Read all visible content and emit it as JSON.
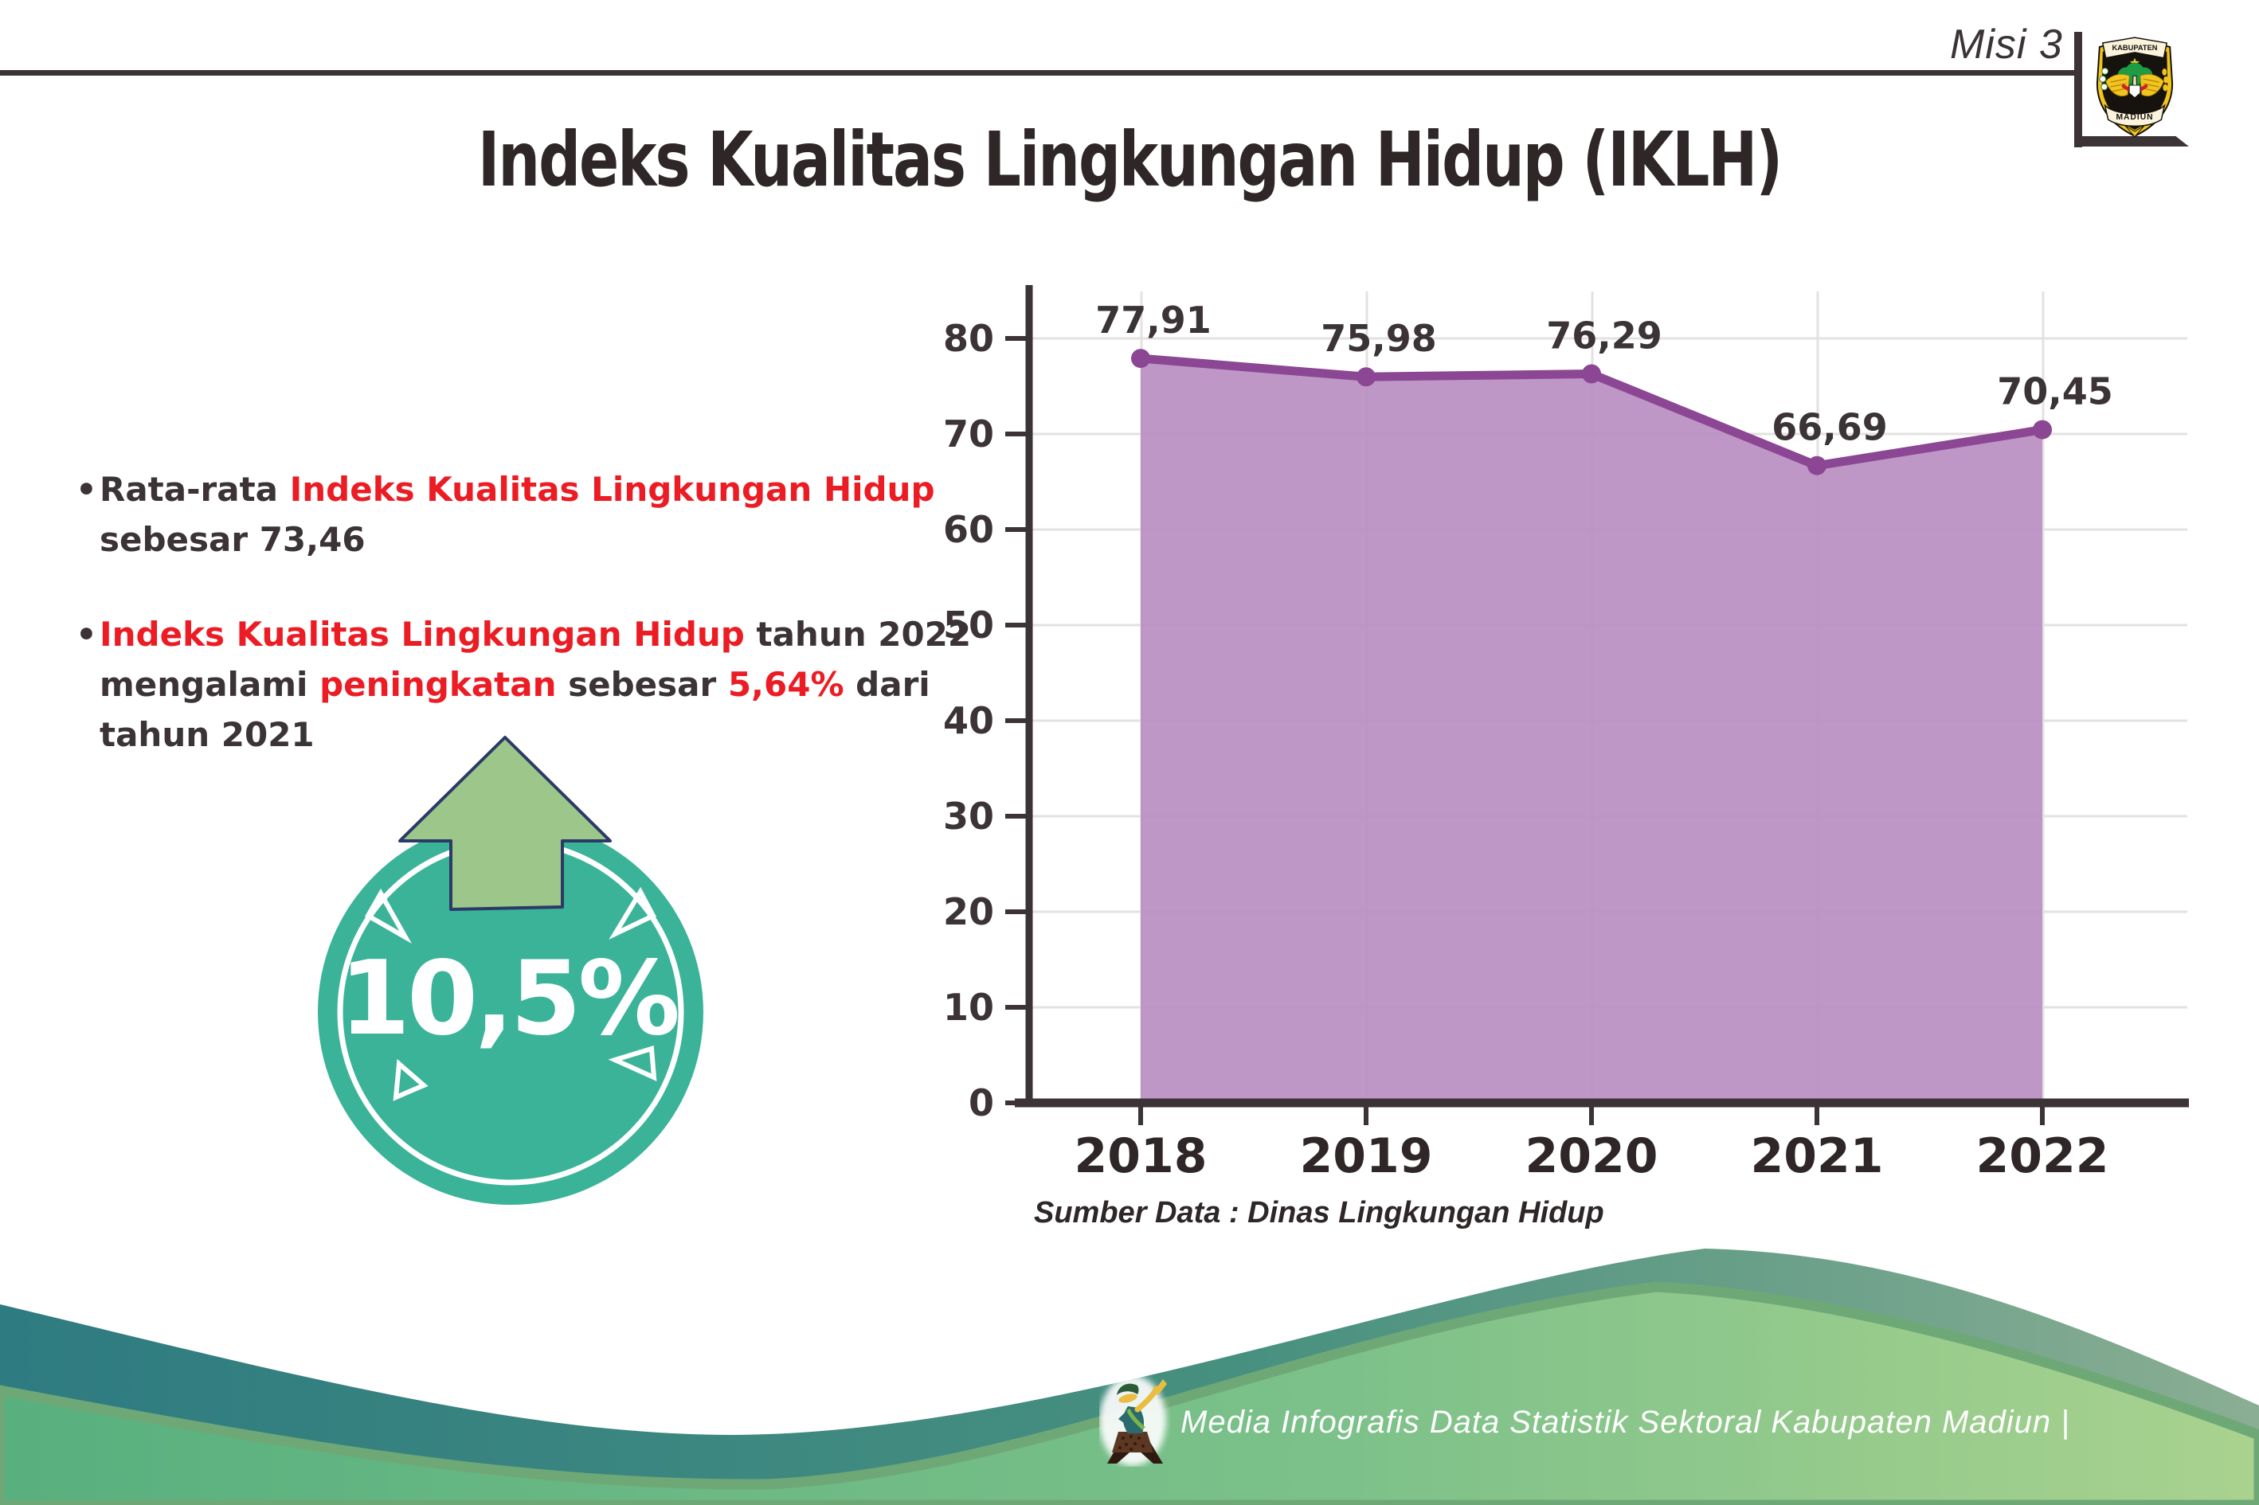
{
  "header": {
    "misi": "Misi 3"
  },
  "logo": {
    "top_text": "KABUPATEN",
    "bottom_text": "MADIUN"
  },
  "title": "Indeks Kualitas Lingkungan Hidup (IKLH)",
  "bullet_marker": "•",
  "bullets": [
    {
      "lines": [
        [
          {
            "t": "Rata-rata ",
            "c": "ink"
          },
          {
            "t": "Indeks Kualitas Lingkungan Hidup",
            "c": "red"
          }
        ],
        [
          {
            "t": "sebesar 73,46",
            "c": "ink"
          }
        ]
      ]
    },
    {
      "lines": [
        [
          {
            "t": "Indeks Kualitas Lingkungan Hidup",
            "c": "red"
          },
          {
            "t": " tahun 2022",
            "c": "ink"
          }
        ],
        [
          {
            "t": "mengalami ",
            "c": "ink"
          },
          {
            "t": "peningkatan",
            "c": "red"
          },
          {
            "t": " sebesar ",
            "c": "ink"
          },
          {
            "t": "5,64%",
            "c": "red"
          },
          {
            "t": " dari",
            "c": "ink"
          }
        ],
        [
          {
            "t": "tahun 2021",
            "c": "ink"
          }
        ]
      ]
    }
  ],
  "badge": {
    "value": "10,5%",
    "direction": "up"
  },
  "chart_data": {
    "type": "area",
    "categories": [
      "2018",
      "2019",
      "2020",
      "2021",
      "2022"
    ],
    "values": [
      77.91,
      75.98,
      76.29,
      66.69,
      70.45
    ],
    "point_labels": [
      "77,91",
      "75,98",
      "76,29",
      "66,69",
      "70,45"
    ],
    "yticks": [
      0,
      10,
      20,
      30,
      40,
      50,
      60,
      70,
      80
    ],
    "ylim": [
      0,
      85
    ],
    "grid": true,
    "legend": "none",
    "title": "",
    "xlabel": "",
    "ylabel": ""
  },
  "source_note": "Sumber Data : Dinas Lingkungan Hidup",
  "footer": {
    "credit": "Media Infografis Data Statistik Sektoral Kabupaten Madiun |"
  },
  "colors": {
    "ink": "#3b3335",
    "red": "#ec1c24",
    "chart_line": "#8b4793",
    "chart_fill": "#ba8ec2",
    "grid": "#e4e1e1",
    "badge_teal": "#3ab399",
    "badge_arrow": "#9dc78a",
    "badge_arrow_outline": "#2b3a67",
    "wave_teal_dark": "#2e7b81",
    "wave_teal_sage": "#8aae93",
    "wave_green": "#58b07e",
    "wave_green_light": "#a9d28e",
    "wave_green_edge": "#6fa877"
  }
}
